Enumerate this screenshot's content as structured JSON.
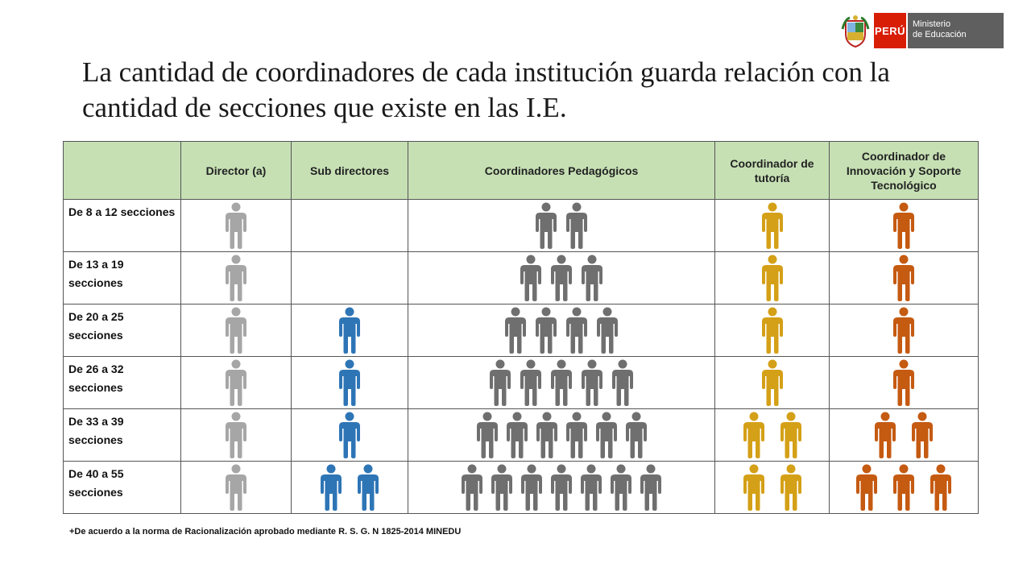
{
  "header": {
    "logo_country": "PERÚ",
    "logo_ministry_line1": "Ministerio",
    "logo_ministry_line2": "de Educación"
  },
  "slide": {
    "title": "La cantidad de coordinadores de cada institución guarda relación con la cantidad de secciones que existe en las I.E."
  },
  "table": {
    "columns": [
      "",
      "Director (a)",
      "Sub directores",
      "Coordinadores Pedagógicos",
      "Coordinador de tutoría",
      "Coordinador de Innovación y Soporte Tecnológico"
    ],
    "column_colors": [
      "",
      "#a6a6a6",
      "#2e75b6",
      "#6f6f6f",
      "#d4a017",
      "#c55a11"
    ],
    "rows": [
      {
        "label": "De 8 a 12 secciones",
        "counts": [
          1,
          0,
          2,
          1,
          1
        ]
      },
      {
        "label": "De 13 a 19 secciones",
        "counts": [
          1,
          0,
          3,
          1,
          1
        ]
      },
      {
        "label": "De 20 a 25 secciones",
        "counts": [
          1,
          1,
          4,
          1,
          1
        ]
      },
      {
        "label": "De 26 a 32 secciones",
        "counts": [
          1,
          1,
          5,
          1,
          1
        ]
      },
      {
        "label": "De 33 a 39 secciones",
        "counts": [
          1,
          1,
          6,
          2,
          2
        ]
      },
      {
        "label": "De 40 a 55 secciones",
        "counts": [
          1,
          2,
          7,
          2,
          3
        ]
      }
    ]
  },
  "footnote": "+De acuerdo a la norma de Racionalización aprobado mediante R. S. G. N 1825-2014  MINEDU"
}
